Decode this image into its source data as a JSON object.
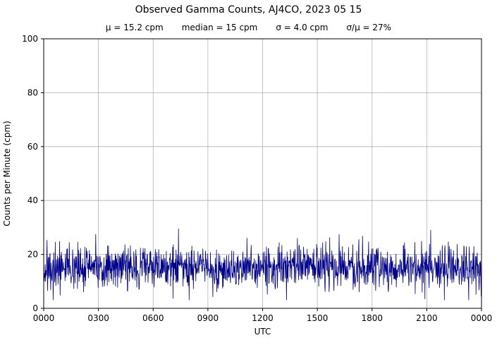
{
  "chart_data": {
    "type": "line",
    "title": "Observed Gamma Counts, AJ4CO, 2023 05 15",
    "subtitle_parts": [
      "μ = 15.2 cpm",
      "median = 15 cpm",
      "σ = 4.0 cpm",
      "σ/μ = 27%"
    ],
    "stats": {
      "mu_cpm": 15.2,
      "median_cpm": 15,
      "sigma_cpm": 4.0,
      "sigma_over_mu_pct": 27
    },
    "xlabel": "UTC",
    "ylabel": "Counts per Minute (cpm)",
    "ylim": [
      0,
      100
    ],
    "xlim_minutes": [
      0,
      1440
    ],
    "x_tick_pos": [
      0,
      180,
      360,
      540,
      720,
      900,
      1080,
      1260,
      1440
    ],
    "x_tick_labels": [
      "0000",
      "0300",
      "0600",
      "0900",
      "1200",
      "1500",
      "1800",
      "2100",
      "0000"
    ],
    "y_ticks": [
      0,
      20,
      40,
      60,
      80,
      100
    ],
    "grid": true,
    "legend": "none",
    "line_color": "#00008B",
    "grid_color": "#b0b0b0",
    "axis_color": "#000000",
    "n_points": 1440,
    "noise_seed": 20230515,
    "noise_mean": 15.2,
    "noise_sigma": 4.0,
    "value_clip": [
      3,
      31
    ]
  }
}
